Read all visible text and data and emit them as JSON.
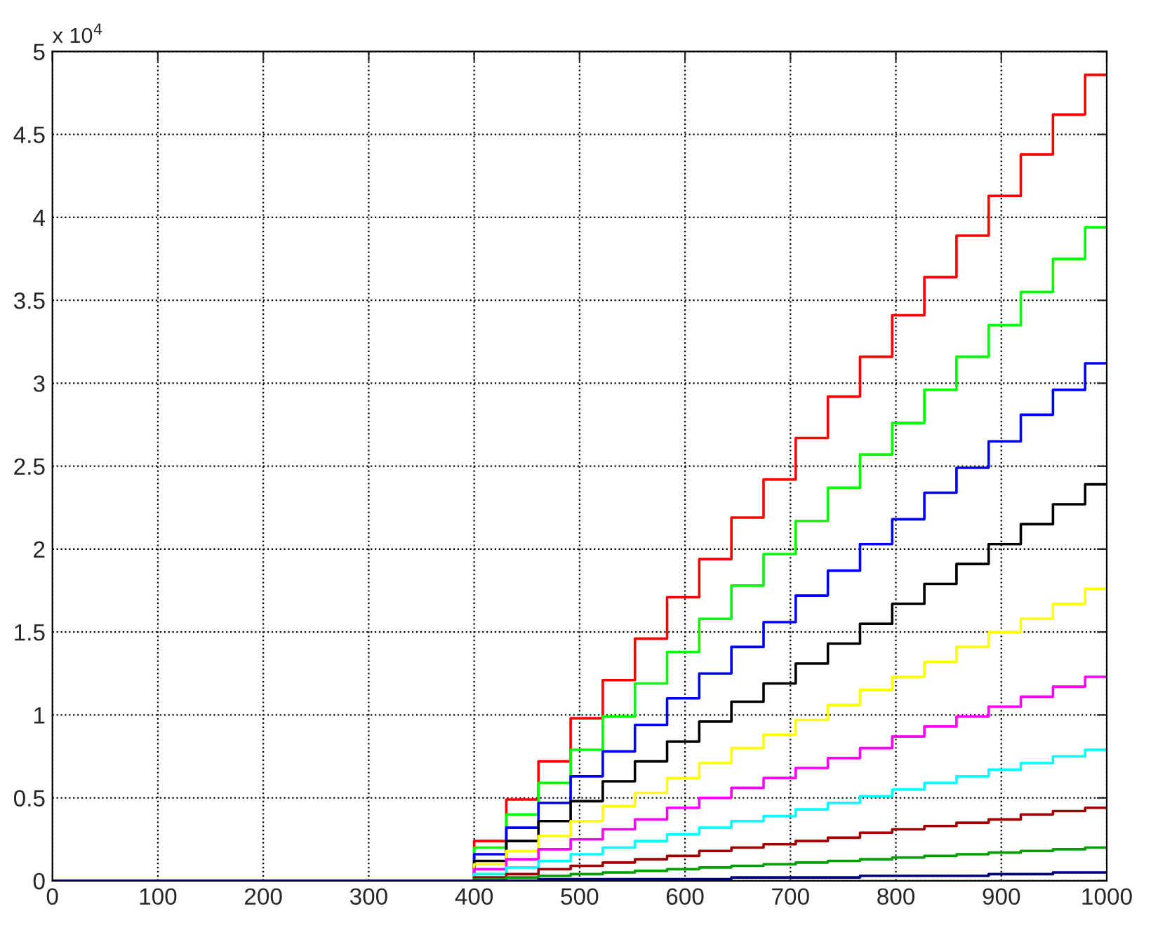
{
  "chart_data": {
    "type": "step",
    "x": [
      0,
      400,
      430.5,
      461,
      491.5,
      522,
      552.5,
      583,
      613.5,
      644,
      674.5,
      705,
      735.5,
      766,
      796.5,
      827,
      857.5,
      888,
      918.5,
      949,
      979.5,
      1000
    ],
    "series": [
      {
        "color": "#ff0000",
        "values": [
          0,
          0.24,
          0.49,
          0.72,
          0.98,
          1.21,
          1.46,
          1.71,
          1.94,
          2.19,
          2.42,
          2.67,
          2.92,
          3.16,
          3.41,
          3.64,
          3.89,
          4.13,
          4.38,
          4.62,
          4.86,
          4.86
        ]
      },
      {
        "color": "#00ff00",
        "values": [
          0,
          0.2,
          0.4,
          0.59,
          0.79,
          0.99,
          1.19,
          1.38,
          1.58,
          1.78,
          1.97,
          2.17,
          2.37,
          2.57,
          2.76,
          2.96,
          3.16,
          3.35,
          3.55,
          3.75,
          3.94,
          3.94
        ]
      },
      {
        "color": "#0000ff",
        "values": [
          0,
          0.16,
          0.32,
          0.47,
          0.63,
          0.78,
          0.94,
          1.1,
          1.25,
          1.41,
          1.56,
          1.72,
          1.87,
          2.03,
          2.18,
          2.34,
          2.49,
          2.65,
          2.81,
          2.96,
          3.12,
          3.12
        ]
      },
      {
        "color": "#000000",
        "values": [
          0,
          0.12,
          0.24,
          0.36,
          0.48,
          0.6,
          0.72,
          0.84,
          0.96,
          1.08,
          1.19,
          1.31,
          1.43,
          1.55,
          1.67,
          1.79,
          1.91,
          2.03,
          2.15,
          2.27,
          2.39,
          2.39
        ]
      },
      {
        "color": "#ffff00",
        "values": [
          0,
          0.1,
          0.18,
          0.27,
          0.36,
          0.45,
          0.53,
          0.62,
          0.71,
          0.8,
          0.88,
          0.97,
          1.06,
          1.15,
          1.23,
          1.32,
          1.41,
          1.5,
          1.58,
          1.67,
          1.76,
          1.76
        ]
      },
      {
        "color": "#ff00ff",
        "values": [
          0,
          0.07,
          0.13,
          0.19,
          0.25,
          0.31,
          0.37,
          0.44,
          0.5,
          0.56,
          0.62,
          0.68,
          0.74,
          0.8,
          0.87,
          0.93,
          0.99,
          1.05,
          1.11,
          1.17,
          1.23,
          1.23
        ]
      },
      {
        "color": "#00ffff",
        "values": [
          0,
          0.04,
          0.08,
          0.12,
          0.16,
          0.2,
          0.24,
          0.28,
          0.32,
          0.36,
          0.39,
          0.43,
          0.47,
          0.51,
          0.55,
          0.59,
          0.63,
          0.67,
          0.71,
          0.75,
          0.79,
          0.79
        ]
      },
      {
        "color": "#a00000",
        "values": [
          0,
          0.02,
          0.04,
          0.07,
          0.09,
          0.11,
          0.13,
          0.15,
          0.18,
          0.2,
          0.22,
          0.24,
          0.26,
          0.29,
          0.31,
          0.33,
          0.35,
          0.37,
          0.4,
          0.42,
          0.44,
          0.44
        ]
      },
      {
        "color": "#00a000",
        "values": [
          0,
          0.01,
          0.02,
          0.03,
          0.04,
          0.05,
          0.06,
          0.07,
          0.08,
          0.09,
          0.1,
          0.11,
          0.12,
          0.13,
          0.14,
          0.15,
          0.16,
          0.17,
          0.18,
          0.19,
          0.2,
          0.2
        ]
      },
      {
        "color": "#000080",
        "values": [
          0,
          0,
          0,
          0.01,
          0.01,
          0.01,
          0.01,
          0.01,
          0.01,
          0.02,
          0.02,
          0.02,
          0.02,
          0.03,
          0.03,
          0.03,
          0.03,
          0.04,
          0.04,
          0.05,
          0.05,
          0.05
        ]
      }
    ],
    "xlim": [
      0,
      1000
    ],
    "xticks": [
      0,
      100,
      200,
      300,
      400,
      500,
      600,
      700,
      800,
      900,
      1000
    ],
    "ylim": [
      0,
      5
    ],
    "yticks": [
      0,
      0.5,
      1,
      1.5,
      2,
      2.5,
      3,
      3.5,
      4,
      4.5,
      5
    ],
    "annotations": [
      "x 10$^{4}$"
    ],
    "grid": true,
    "line_style": "solid"
  }
}
